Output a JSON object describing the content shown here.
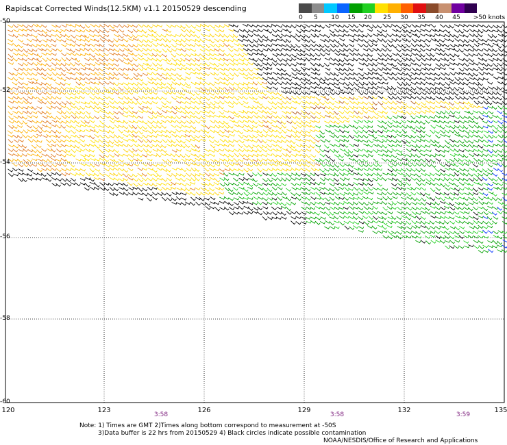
{
  "title": "Rapidscat Corrected Winds(12.5KM) v1.1 20150529 descending",
  "colorbar": {
    "colors": [
      "#4a4a4a",
      "#8c8c8c",
      "#00c8ff",
      "#0a64ff",
      "#00a000",
      "#20d020",
      "#ffe000",
      "#ffb000",
      "#ff6000",
      "#e01010",
      "#8a4a2a",
      "#c89070",
      "#7000a0",
      "#300050"
    ],
    "labels": [
      "0",
      "5",
      "10",
      "15",
      "20",
      "25",
      "30",
      "35",
      "40",
      "45",
      ">50 knots"
    ]
  },
  "axes": {
    "lat_labels": [
      "-50",
      "-52",
      "-54",
      "-56",
      "-58",
      "-60"
    ],
    "lon_labels": [
      "120",
      "123",
      "126",
      "129",
      "132",
      "135"
    ]
  },
  "times": [
    "3:58",
    "3:58",
    "3:59"
  ],
  "notes": {
    "line1": "Note: 1) Times are GMT 2)Times along bottom correspond to measurement at -50S",
    "line2": "3)Data buffer is 22 hrs from 20150529 4) Black circles indicate possible contamination",
    "line3": "NOAA/NESDIS/Office of Research and Applications"
  }
}
